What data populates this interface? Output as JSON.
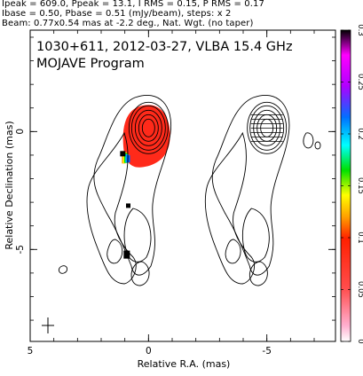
{
  "header": {
    "line1": "Ipeak = 609.0, Ppeak = 13.1, I RMS = 0.15, P RMS = 0.17",
    "line2": "Ibase = 0.50, Pbase = 0.51 (mJy/beam), steps: x 2",
    "line3": "Beam: 0.77x0.54 mas at -2.2 deg., Nat. Wgt. (no taper)"
  },
  "chart_data": {
    "type": "heatmap",
    "title": "1030+611, 2012-03-27, VLBA 15.4 GHz",
    "subtitle": "MOJAVE Program",
    "xlabel": "Relative R.A. (mas)",
    "ylabel": "Relative Declination (mas)",
    "xlim": [
      5,
      -7.9
    ],
    "ylim": [
      -8.9,
      4.3
    ],
    "x_ticks": [
      "5",
      "0",
      "-5"
    ],
    "y_ticks": [
      "0",
      "-5"
    ],
    "x_tick_values": [
      5,
      0,
      -5
    ],
    "y_tick_values": [
      0,
      -5
    ],
    "colorbar": {
      "range": [
        0,
        0.3
      ],
      "ticks": [
        "0",
        "0.05",
        "0.1",
        "0.15",
        "0.2",
        "0.25",
        "0.3"
      ],
      "tick_values": [
        0,
        0.05,
        0.1,
        0.15,
        0.2,
        0.25,
        0.3
      ],
      "colors": [
        "#ffffff",
        "#ff99cc",
        "#ff3333",
        "#ff8800",
        "#ffff00",
        "#00dd00",
        "#00ffff",
        "#0066ff",
        "#cc00ff",
        "#000000"
      ]
    },
    "stokes_i_panel": {
      "core_position": [
        0,
        0
      ],
      "contour_levels_mjy": [
        0.5,
        1,
        2,
        4,
        8,
        16,
        32,
        64,
        128,
        256,
        512
      ],
      "jet_direction": "south-southeast",
      "jet_extent_mas": 6.5
    },
    "polarization_panel": {
      "x_offset_mas": 5,
      "core_position": [
        0,
        0
      ]
    },
    "fractional_pol_map": {
      "core_value_approx": 0.02,
      "edge_value_approx": 0.15,
      "max_value": 0.3
    },
    "beam": {
      "major_mas": 0.77,
      "minor_mas": 0.54,
      "pa_deg": -2.2
    }
  }
}
